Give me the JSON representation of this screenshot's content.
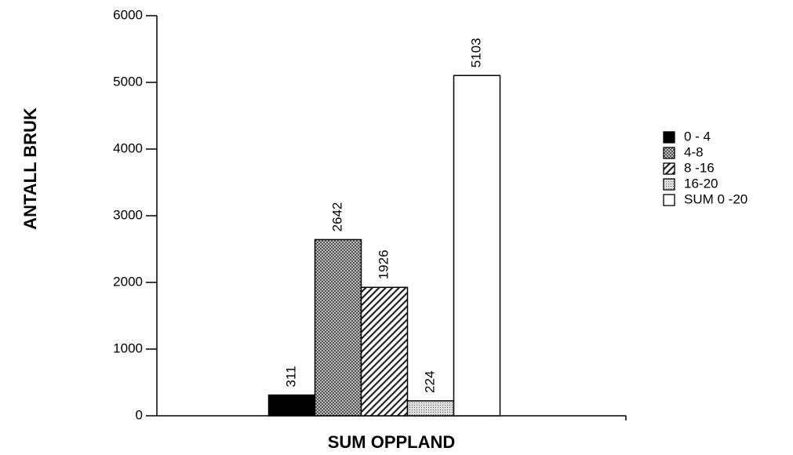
{
  "chart_data": {
    "type": "bar",
    "ylabel": "ANTALL BRUK",
    "categories": [
      "SUM OPPLAND"
    ],
    "series": [
      {
        "name": "0 - 4",
        "color": "#000000",
        "pattern": "solid",
        "values": [
          311
        ]
      },
      {
        "name": "4-8",
        "color": "#000000",
        "pattern": "crosshatch",
        "values": [
          2642
        ]
      },
      {
        "name": "8 -16",
        "color": "#000000",
        "pattern": "diagonal",
        "values": [
          1926
        ]
      },
      {
        "name": "16-20",
        "color": "#000000",
        "pattern": "dots",
        "values": [
          224
        ]
      },
      {
        "name": "SUM 0 -20",
        "color": "#000000",
        "pattern": "none",
        "values": [
          5103
        ]
      }
    ],
    "ylim": [
      0,
      6000
    ],
    "yticks": [
      0,
      1000,
      2000,
      3000,
      4000,
      5000,
      6000
    ],
    "grid": false,
    "legend": "right"
  }
}
